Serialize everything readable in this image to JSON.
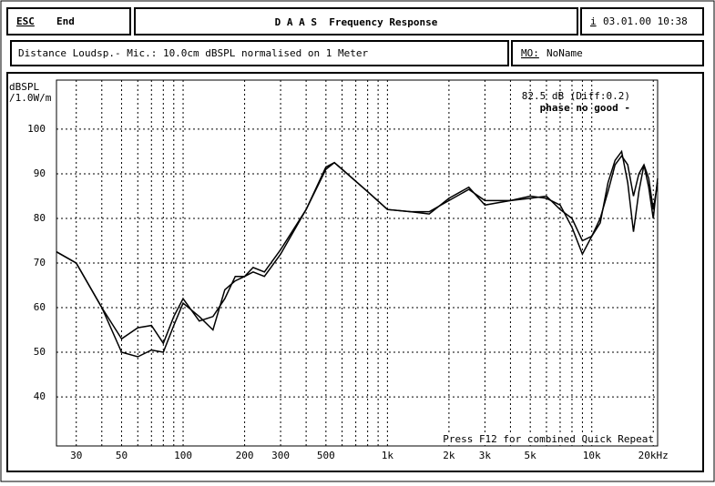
{
  "header": {
    "esc": "ESC",
    "end": "End",
    "title": "D A A S  Frequency Response",
    "info": "i",
    "datetime": "03.01.00 10:38",
    "distance": "Distance Loudsp.- Mic.: 10.0cm dBSPL normalised on 1 Meter",
    "mo": "MO:",
    "name": "NoName"
  },
  "chart_data": {
    "type": "line",
    "y_label": "dBSPL",
    "y_unit": "/1.0W/m",
    "annotations": [
      "82.5 dB (Diff:0.2)",
      "phase no good -",
      "Press F12 for combined Quick Repeat"
    ],
    "x": [
      24,
      30,
      40,
      50,
      60,
      70,
      80,
      90,
      100,
      120,
      140,
      160,
      180,
      200,
      220,
      250,
      300,
      400,
      500,
      550,
      600,
      800,
      1000,
      1300,
      1600,
      2000,
      2500,
      3000,
      4000,
      5000,
      6000,
      7000,
      8000,
      9000,
      10000,
      11000,
      12000,
      13000,
      14000,
      15000,
      16000,
      17000,
      18000,
      19000,
      20000,
      21000
    ],
    "series": [
      {
        "color": "#000000",
        "values": [
          72.5,
          70,
          60,
          50,
          49,
          50.5,
          50,
          56,
          61,
          58,
          55,
          64,
          66,
          67,
          69,
          68,
          73,
          82,
          91,
          92.5,
          91,
          86,
          82,
          81.5,
          81.5,
          84,
          86.5,
          84,
          84,
          85,
          84.5,
          83,
          78,
          72,
          76,
          79,
          88,
          93,
          95,
          88,
          77,
          86,
          92,
          87,
          80,
          89
        ]
      },
      {
        "color": "#000000",
        "values": [
          72.5,
          70,
          60,
          53,
          55.5,
          56,
          52,
          58,
          62,
          57,
          58,
          62,
          67,
          67,
          68,
          67,
          72,
          82,
          91.5,
          92.5,
          91,
          86,
          82,
          81.5,
          81,
          84.5,
          87,
          83,
          84,
          84.5,
          85,
          82,
          80,
          75,
          76,
          80,
          86,
          92,
          94,
          92,
          85,
          90,
          92,
          89,
          82,
          88
        ]
      }
    ],
    "xscale": "log",
    "xlim": [
      24,
      21000
    ],
    "ylim": [
      29,
      111
    ],
    "xticks": [
      30,
      50,
      100,
      200,
      300,
      500,
      {
        "value": 1000,
        "label": "1k"
      },
      {
        "value": 2000,
        "label": "2k"
      },
      {
        "value": 3000,
        "label": "3k"
      },
      {
        "value": 5000,
        "label": "5k"
      },
      {
        "value": 10000,
        "label": "10k"
      },
      {
        "value": 20000,
        "label": "20kHz"
      }
    ],
    "xgrid": [
      40,
      60,
      70,
      80,
      90,
      400,
      600,
      700,
      800,
      900,
      4000,
      6000,
      7000,
      8000,
      9000
    ],
    "yticks": [
      40,
      50,
      60,
      70,
      80,
      90,
      100
    ],
    "grid": true
  }
}
